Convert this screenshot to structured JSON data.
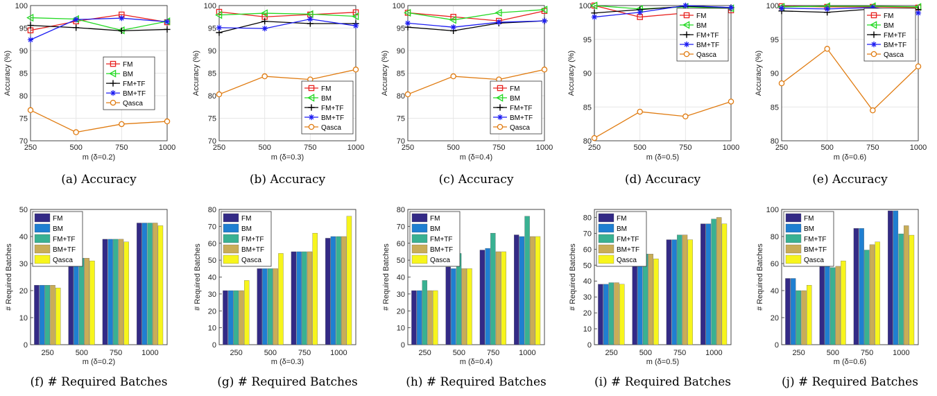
{
  "colors": {
    "FM": "#e8201e",
    "BM": "#22d922",
    "FM+TF": "#000000",
    "BM+TF": "#1c1cf2",
    "Qasca": "#e07b10",
    "bar_FM": "#332a86",
    "bar_BM": "#1f7fd1",
    "bar_FMTF": "#39b192",
    "bar_BMTF": "#c9ad57",
    "bar_Qasca": "#f7f51c"
  },
  "chart_data": [
    {
      "id": "a",
      "type": "line",
      "caption": "(a)  Accuracy",
      "xlabel": "m (δ=0.2)",
      "ylabel": "Accuracy (%)",
      "x": [
        250,
        500,
        750,
        1000
      ],
      "xticks": [
        "250",
        "500",
        "750",
        "1000"
      ],
      "ylim": [
        70,
        100
      ],
      "yticks": [
        70,
        75,
        80,
        85,
        90,
        95,
        100
      ],
      "grid": true,
      "legend": "center-right",
      "series": [
        {
          "name": "FM",
          "marker": "square",
          "values": [
            94.5,
            96.5,
            98.0,
            96.3
          ]
        },
        {
          "name": "BM",
          "marker": "triangle-left",
          "values": [
            97.3,
            97.0,
            94.5,
            96.5
          ]
        },
        {
          "name": "FM+TF",
          "marker": "plus",
          "values": [
            95.6,
            95.1,
            94.4,
            94.7
          ]
        },
        {
          "name": "BM+TF",
          "marker": "asterisk",
          "values": [
            92.4,
            96.9,
            97.2,
            96.4
          ]
        },
        {
          "name": "Qasca",
          "marker": "circle",
          "values": [
            76.8,
            71.9,
            73.7,
            74.3
          ]
        }
      ]
    },
    {
      "id": "b",
      "type": "line",
      "caption": "(b)  Accuracy",
      "xlabel": "m (δ=0.3)",
      "ylabel": "Accuracy (%)",
      "x": [
        250,
        500,
        750,
        1000
      ],
      "xticks": [
        "250",
        "500",
        "750",
        "1000"
      ],
      "ylim": [
        70,
        100
      ],
      "yticks": [
        70,
        75,
        80,
        85,
        90,
        95,
        100
      ],
      "grid": true,
      "legend": "bottom-right",
      "series": [
        {
          "name": "FM",
          "marker": "square",
          "values": [
            98.6,
            97.5,
            98.0,
            98.5
          ]
        },
        {
          "name": "BM",
          "marker": "triangle-left",
          "values": [
            97.9,
            98.3,
            98.1,
            97.6
          ]
        },
        {
          "name": "FM+TF",
          "marker": "plus",
          "values": [
            94.0,
            96.5,
            96.0,
            96.0
          ]
        },
        {
          "name": "BM+TF",
          "marker": "asterisk",
          "values": [
            95.1,
            94.9,
            97.0,
            95.5
          ]
        },
        {
          "name": "Qasca",
          "marker": "circle",
          "values": [
            80.3,
            84.3,
            83.6,
            85.8
          ]
        }
      ]
    },
    {
      "id": "c",
      "type": "line",
      "caption": "(c)  Accuracy",
      "xlabel": "m (δ=0.4)",
      "ylabel": "Accuracy (%)",
      "x": [
        250,
        500,
        750,
        1000
      ],
      "xticks": [
        "250",
        "500",
        "750",
        "1000"
      ],
      "ylim": [
        70,
        100
      ],
      "yticks": [
        70,
        75,
        80,
        85,
        90,
        95,
        100
      ],
      "grid": true,
      "legend": "bottom-right",
      "series": [
        {
          "name": "FM",
          "marker": "square",
          "values": [
            98.4,
            97.5,
            96.6,
            98.8
          ]
        },
        {
          "name": "BM",
          "marker": "triangle-left",
          "values": [
            98.4,
            96.8,
            98.4,
            99.1
          ]
        },
        {
          "name": "FM+TF",
          "marker": "plus",
          "values": [
            95.2,
            94.4,
            96.1,
            96.6
          ]
        },
        {
          "name": "BM+TF",
          "marker": "asterisk",
          "values": [
            96.1,
            95.2,
            96.3,
            96.6
          ]
        },
        {
          "name": "Qasca",
          "marker": "circle",
          "values": [
            80.3,
            84.3,
            83.6,
            85.8
          ]
        }
      ]
    },
    {
      "id": "d",
      "type": "line",
      "caption": "(d)  Accuracy",
      "xlabel": "m (δ=0.5)",
      "ylabel": "Accuracy (%)",
      "x": [
        250,
        500,
        750,
        1000
      ],
      "xticks": [
        "250",
        "500",
        "750",
        "1000"
      ],
      "ylim": [
        80,
        100
      ],
      "yticks": [
        80,
        85,
        90,
        95,
        100
      ],
      "grid": true,
      "legend": "top-right",
      "series": [
        {
          "name": "FM",
          "marker": "square",
          "values": [
            100.0,
            98.3,
            98.9,
            99.3
          ]
        },
        {
          "name": "BM",
          "marker": "triangle-left",
          "values": [
            100.0,
            99.5,
            99.8,
            99.6
          ]
        },
        {
          "name": "FM+TF",
          "marker": "plus",
          "values": [
            98.9,
            99.4,
            99.9,
            99.7
          ]
        },
        {
          "name": "BM+TF",
          "marker": "asterisk",
          "values": [
            98.3,
            99.0,
            100.0,
            99.7
          ]
        },
        {
          "name": "Qasca",
          "marker": "circle",
          "values": [
            80.4,
            84.3,
            83.6,
            85.8
          ]
        }
      ]
    },
    {
      "id": "e",
      "type": "line",
      "caption": "(e)  Accuracy",
      "xlabel": "m (δ=0.6)",
      "ylabel": "Accuracy (%)",
      "x": [
        250,
        500,
        750,
        1000
      ],
      "xticks": [
        "250",
        "500",
        "750",
        "1000"
      ],
      "ylim": [
        80,
        100
      ],
      "yticks": [
        80,
        85,
        90,
        95,
        100
      ],
      "grid": true,
      "legend": "top-right",
      "series": [
        {
          "name": "FM",
          "marker": "square",
          "values": [
            99.9,
            99.8,
            99.8,
            99.7
          ]
        },
        {
          "name": "BM",
          "marker": "triangle-left",
          "values": [
            99.8,
            99.9,
            99.9,
            99.8
          ]
        },
        {
          "name": "FM+TF",
          "marker": "plus",
          "values": [
            99.2,
            99.0,
            99.5,
            99.4
          ]
        },
        {
          "name": "BM+TF",
          "marker": "asterisk",
          "values": [
            99.6,
            99.5,
            99.7,
            98.9
          ]
        },
        {
          "name": "Qasca",
          "marker": "circle",
          "values": [
            88.5,
            93.6,
            84.5,
            91.0
          ]
        }
      ]
    },
    {
      "id": "f",
      "type": "bar",
      "caption": "(f)  # Required Batches",
      "xlabel": "m (δ=0.2)",
      "ylabel": "# Required Batches",
      "categories": [
        "250",
        "500",
        "750",
        "1000"
      ],
      "ylim": [
        0,
        50
      ],
      "yticks": [
        0,
        10,
        20,
        30,
        40,
        50
      ],
      "legend": "top-left",
      "series": [
        {
          "name": "FM",
          "values": [
            22,
            32,
            39,
            45
          ]
        },
        {
          "name": "BM",
          "values": [
            22,
            32,
            39,
            45
          ]
        },
        {
          "name": "FM+TF",
          "values": [
            22,
            32,
            39,
            45
          ]
        },
        {
          "name": "BM+TF",
          "values": [
            22,
            32,
            39,
            45
          ]
        },
        {
          "name": "Qasca",
          "values": [
            21,
            31,
            38,
            44
          ]
        }
      ]
    },
    {
      "id": "g",
      "type": "bar",
      "caption": "(g)  # Required Batches",
      "xlabel": "m (δ=0.3)",
      "ylabel": "# Required Batches",
      "categories": [
        "250",
        "500",
        "750",
        "1000"
      ],
      "ylim": [
        0,
        80
      ],
      "yticks": [
        0,
        10,
        20,
        30,
        40,
        50,
        60,
        70,
        80
      ],
      "legend": "top-left",
      "series": [
        {
          "name": "FM",
          "values": [
            32,
            45,
            55,
            63
          ]
        },
        {
          "name": "BM",
          "values": [
            32,
            45,
            55,
            64
          ]
        },
        {
          "name": "FM+TF",
          "values": [
            32,
            45,
            55,
            64
          ]
        },
        {
          "name": "BM+TF",
          "values": [
            32,
            45,
            55,
            64
          ]
        },
        {
          "name": "Qasca",
          "values": [
            38,
            54,
            66,
            76
          ]
        }
      ]
    },
    {
      "id": "h",
      "type": "bar",
      "caption": "(h)  # Required Batches",
      "xlabel": "m (δ=0.4)",
      "ylabel": "# Required Batches",
      "categories": [
        "250",
        "500",
        "750",
        "1000"
      ],
      "ylim": [
        0,
        80
      ],
      "yticks": [
        0,
        10,
        20,
        30,
        40,
        50,
        60,
        70,
        80
      ],
      "legend": "top-left",
      "series": [
        {
          "name": "FM",
          "values": [
            32,
            46,
            56,
            65
          ]
        },
        {
          "name": "BM",
          "values": [
            32,
            45,
            57,
            64
          ]
        },
        {
          "name": "FM+TF",
          "values": [
            38,
            54,
            66,
            76
          ]
        },
        {
          "name": "BM+TF",
          "values": [
            32,
            45,
            55,
            64
          ]
        },
        {
          "name": "Qasca",
          "values": [
            32,
            45,
            55,
            64
          ]
        }
      ]
    },
    {
      "id": "i",
      "type": "bar",
      "caption": "(i)  # Required Batches",
      "xlabel": "m (δ=0.5)",
      "ylabel": "# Required Batches",
      "categories": [
        "250",
        "500",
        "750",
        "1000"
      ],
      "ylim": [
        0,
        85
      ],
      "yticks": [
        0,
        10,
        20,
        30,
        40,
        50,
        60,
        70,
        80
      ],
      "legend": "top-left",
      "series": [
        {
          "name": "FM",
          "values": [
            38,
            54,
            66,
            76
          ]
        },
        {
          "name": "BM",
          "values": [
            38,
            54,
            66,
            76
          ]
        },
        {
          "name": "FM+TF",
          "values": [
            39,
            57,
            69,
            79
          ]
        },
        {
          "name": "BM+TF",
          "values": [
            39,
            57,
            69,
            80
          ]
        },
        {
          "name": "Qasca",
          "values": [
            38,
            54,
            66,
            76
          ]
        }
      ]
    },
    {
      "id": "j",
      "type": "bar",
      "caption": "(j)  # Required Batches",
      "xlabel": "m (δ=0.6)",
      "ylabel": "# Required Batches",
      "categories": [
        "250",
        "500",
        "750",
        "1000"
      ],
      "ylim": [
        0,
        100
      ],
      "yticks": [
        0,
        20,
        40,
        60,
        80,
        100
      ],
      "legend": "top-left",
      "series": [
        {
          "name": "FM",
          "values": [
            49,
            70,
            86,
            99
          ]
        },
        {
          "name": "BM",
          "values": [
            49,
            70,
            86,
            99
          ]
        },
        {
          "name": "FM+TF",
          "values": [
            40,
            57,
            70,
            82
          ]
        },
        {
          "name": "BM+TF",
          "values": [
            40,
            58,
            74,
            88
          ]
        },
        {
          "name": "Qasca",
          "values": [
            44,
            62,
            76,
            81
          ]
        }
      ]
    }
  ]
}
